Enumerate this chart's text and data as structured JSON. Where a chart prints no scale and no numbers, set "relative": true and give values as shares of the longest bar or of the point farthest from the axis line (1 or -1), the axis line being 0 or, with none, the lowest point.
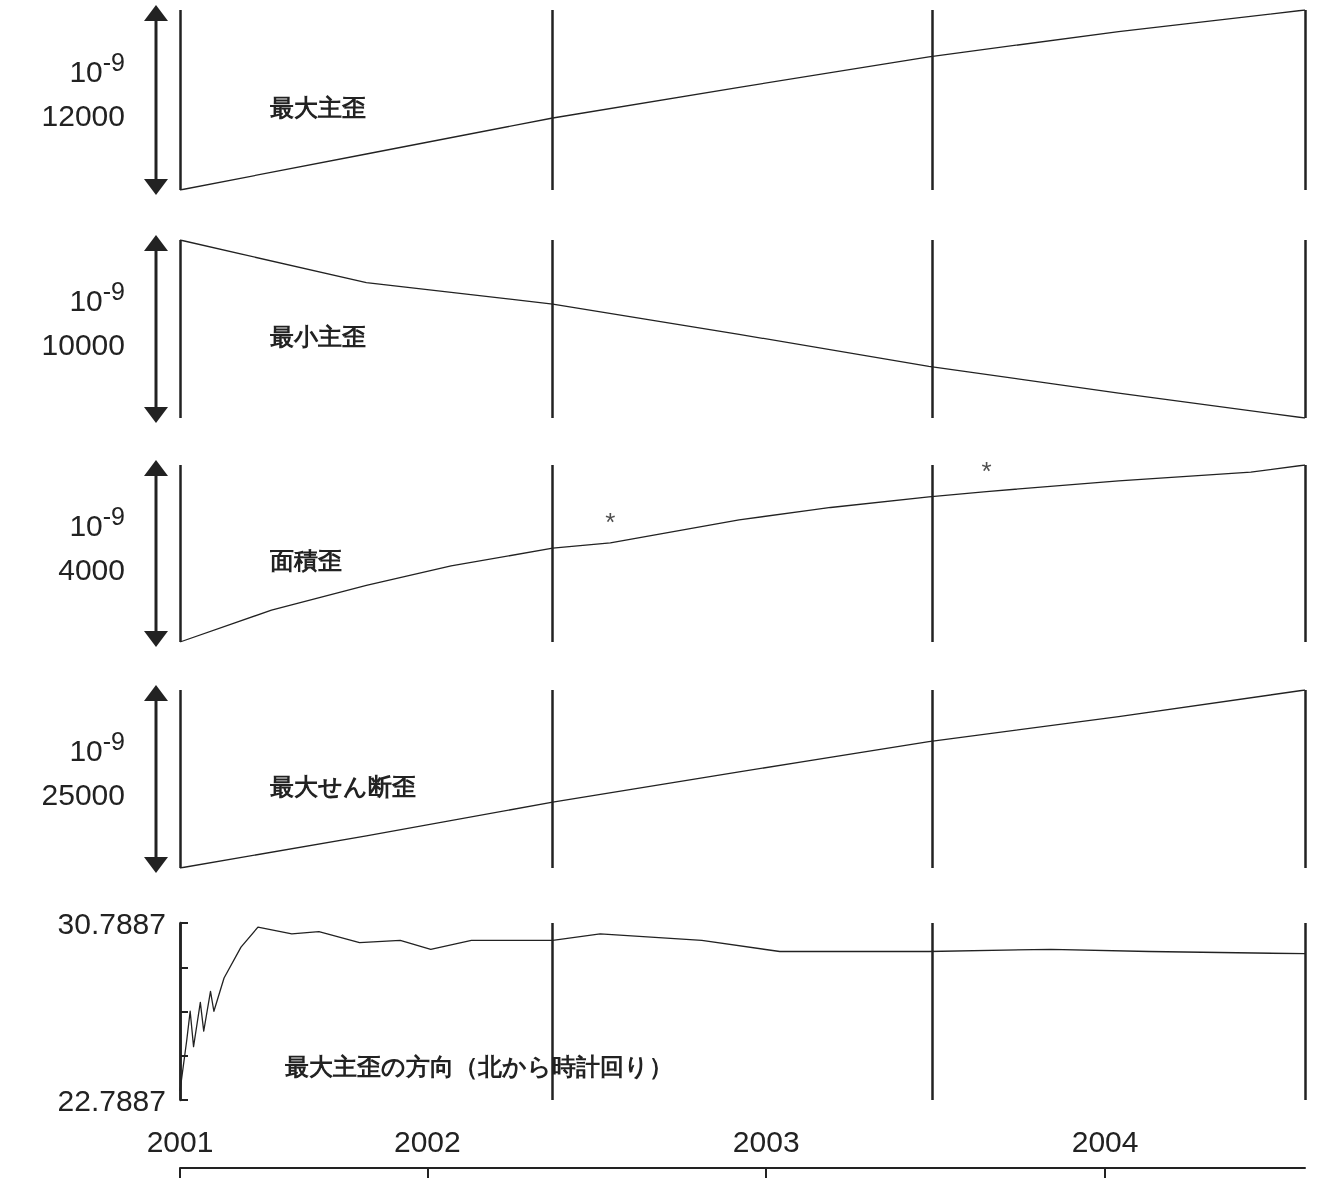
{
  "chart_data": [
    {
      "type": "line",
      "title": "最大主歪",
      "ylabel": "10$^{-9}$\n12000",
      "relative": true,
      "tick_labels": false,
      "xlim": [
        2001.27,
        2004.59
      ],
      "x": [
        2001.27,
        2001.82,
        2002.37,
        2002.92,
        2003.48,
        2004.04,
        2004.59
      ],
      "values": [
        0,
        0.2,
        0.4,
        0.57,
        0.74,
        0.88,
        1
      ],
      "ref_lines": [
        {
          "axis": "x",
          "value": 2001.27
        },
        {
          "axis": "x",
          "value": 2002.37
        },
        {
          "axis": "x",
          "value": 2003.49
        },
        {
          "axis": "x",
          "value": 2004.59
        }
      ]
    },
    {
      "type": "line",
      "title": "最小主歪",
      "ylabel": "10$^{-9}$\n10000",
      "relative": true,
      "tick_labels": false,
      "xlim": [
        2001.27,
        2004.59
      ],
      "x": [
        2001.27,
        2001.82,
        2002.37,
        2002.92,
        2003.48,
        2004.04,
        2004.59
      ],
      "values": [
        1,
        0.76,
        0.64,
        0.47,
        0.29,
        0.14,
        0
      ],
      "ref_lines": [
        {
          "axis": "x",
          "value": 2001.27
        },
        {
          "axis": "x",
          "value": 2002.37
        },
        {
          "axis": "x",
          "value": 2003.49
        },
        {
          "axis": "x",
          "value": 2004.59
        }
      ]
    },
    {
      "type": "line",
      "title": "面積歪",
      "ylabel": "10$^{-9}$\n4000",
      "relative": true,
      "tick_labels": false,
      "xlim": [
        2001.27,
        2004.59
      ],
      "x": [
        2001.27,
        2001.54,
        2001.82,
        2002.07,
        2002.37,
        2002.54,
        2002.92,
        2003.19,
        2003.48,
        2003.65,
        2004.04,
        2004.43,
        2004.59
      ],
      "values": [
        0,
        0.18,
        0.32,
        0.43,
        0.53,
        0.56,
        0.69,
        0.76,
        0.82,
        0.85,
        0.91,
        0.96,
        1
      ],
      "annotations": [
        {
          "text": "*",
          "x": 2002.54,
          "y": 0.56
        },
        {
          "text": "*",
          "x": 2003.65,
          "y": 0.85
        }
      ],
      "ref_lines": [
        {
          "axis": "x",
          "value": 2001.27
        },
        {
          "axis": "x",
          "value": 2002.37
        },
        {
          "axis": "x",
          "value": 2003.49
        },
        {
          "axis": "x",
          "value": 2004.59
        }
      ]
    },
    {
      "type": "line",
      "title": "最大せん断歪",
      "ylabel": "10$^{-9}$\n25000",
      "relative": true,
      "tick_labels": false,
      "xlim": [
        2001.27,
        2004.59
      ],
      "x": [
        2001.27,
        2001.82,
        2002.37,
        2002.92,
        2003.48,
        2004.04,
        2004.59
      ],
      "values": [
        0,
        0.18,
        0.37,
        0.54,
        0.71,
        0.85,
        1
      ],
      "ref_lines": [
        {
          "axis": "x",
          "value": 2001.27
        },
        {
          "axis": "x",
          "value": 2002.37
        },
        {
          "axis": "x",
          "value": 2003.49
        },
        {
          "axis": "x",
          "value": 2004.59
        }
      ]
    },
    {
      "type": "line",
      "title": "最大主歪の方向（北から時計回り）",
      "xlim": [
        2001.27,
        2004.59
      ],
      "xticks": [
        {
          "value": 2001.27,
          "label": "2001"
        },
        2002,
        2003,
        2004
      ],
      "ylim": [
        22.7887,
        30.7887
      ],
      "yticks": [
        22.7887,
        {
          "value": 24.7887,
          "label": null
        },
        {
          "value": 26.7887,
          "label": null
        },
        {
          "value": 28.7887,
          "label": null
        },
        30.7887
      ],
      "x": [
        2001.27,
        2001.29,
        2001.3,
        2001.31,
        2001.33,
        2001.34,
        2001.36,
        2001.37,
        2001.4,
        2001.45,
        2001.5,
        2001.6,
        2001.68,
        2001.8,
        2001.92,
        2002.01,
        2002.13,
        2002.37,
        2002.51,
        2002.81,
        2003.04,
        2003.25,
        2003.48,
        2003.84,
        2004.13,
        2004.59
      ],
      "values": [
        23.2,
        25.5,
        26.8,
        25.2,
        27.2,
        25.9,
        27.7,
        26.8,
        28.3,
        29.7,
        30.6,
        30.3,
        30.4,
        29.9,
        30.0,
        29.6,
        30.0,
        30.0,
        30.3,
        30.0,
        29.5,
        29.5,
        29.5,
        29.6,
        29.5,
        29.4
      ],
      "ref_lines": [
        {
          "axis": "x",
          "value": 2001.27
        },
        {
          "axis": "x",
          "value": 2002.37
        },
        {
          "axis": "x",
          "value": 2003.49
        },
        {
          "axis": "x",
          "value": 2004.59
        }
      ]
    }
  ]
}
